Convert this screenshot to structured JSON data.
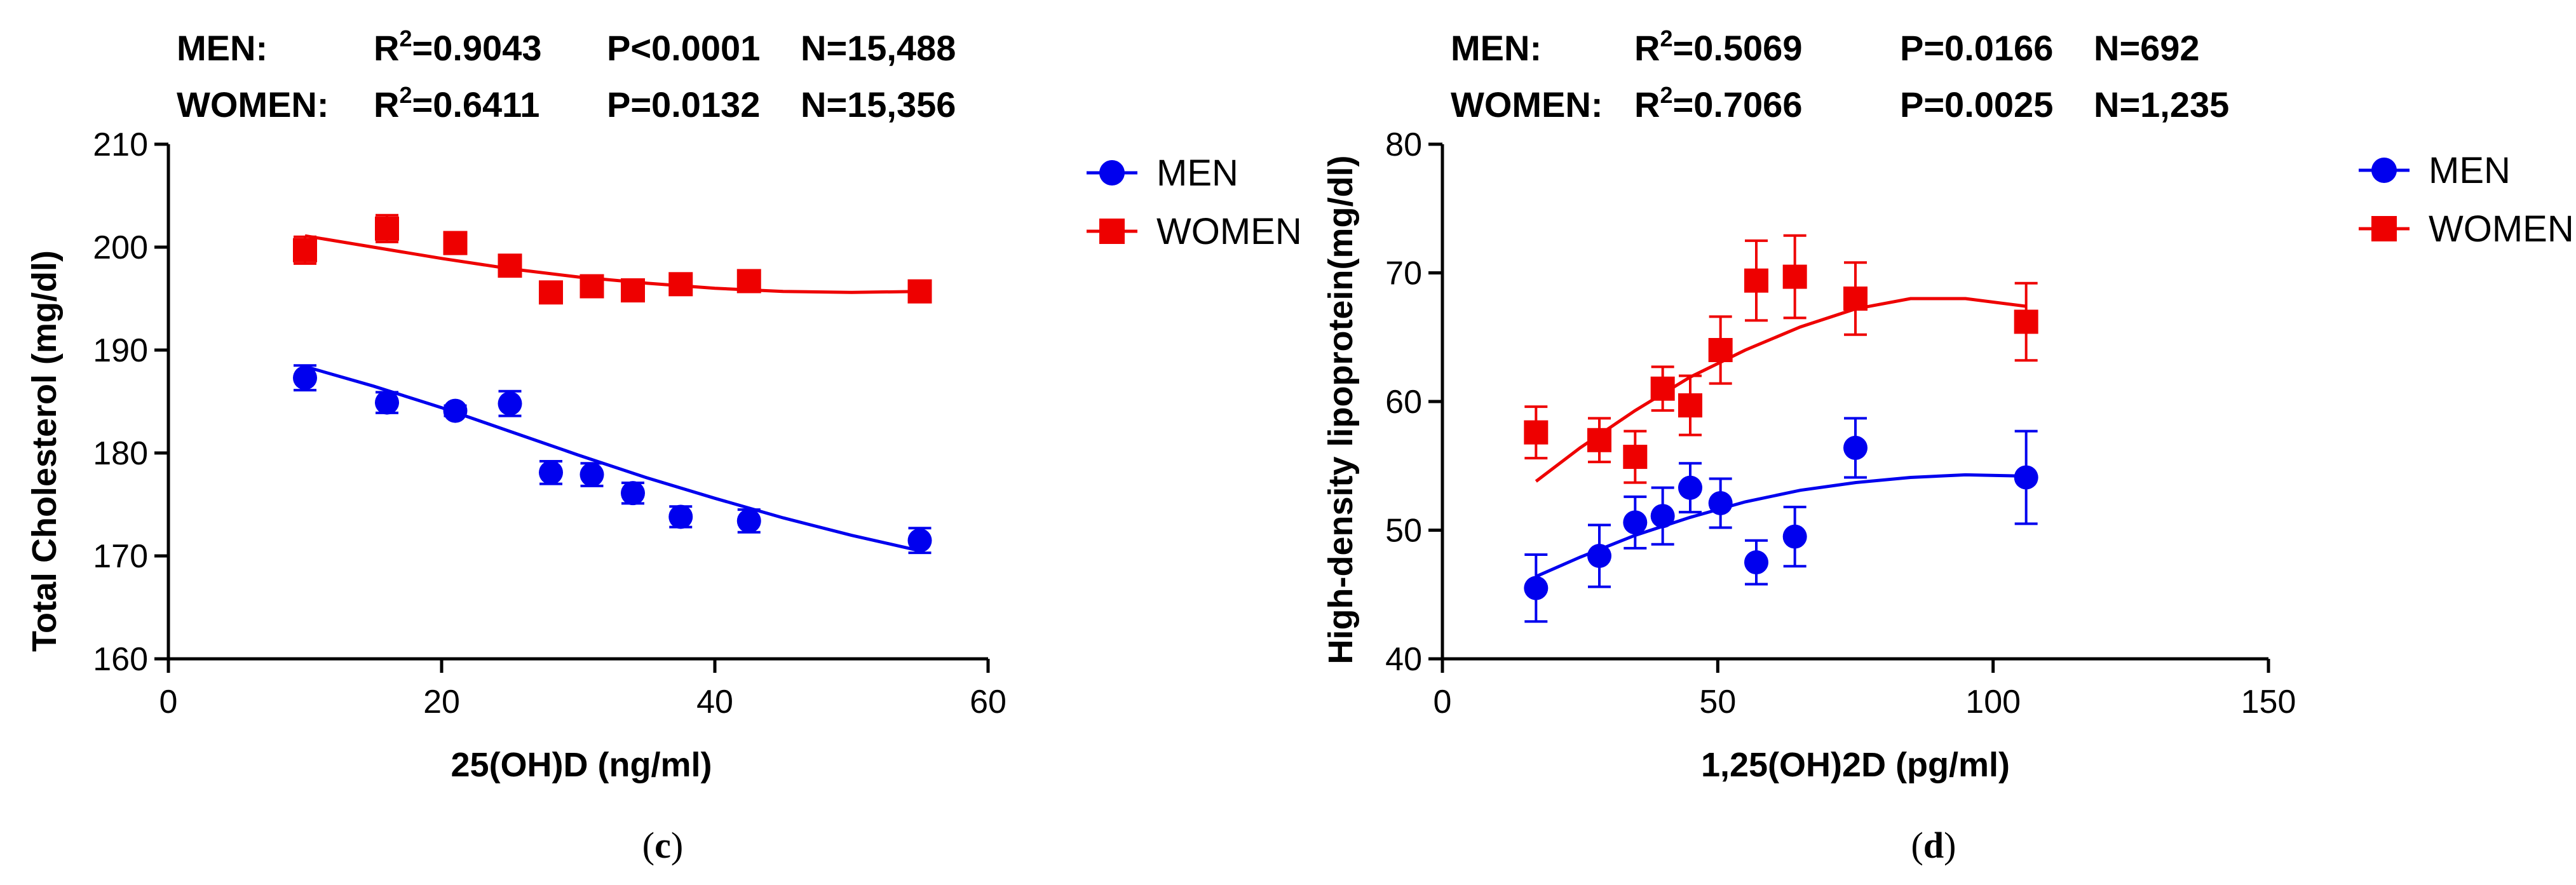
{
  "chart_data": [
    {
      "type": "scatter",
      "panel_label": "c",
      "stats": [
        {
          "group": "MEN:",
          "r2": "=0.9043",
          "p": "P<0.0001",
          "n": "N=15,488"
        },
        {
          "group": "WOMEN:",
          "r2": "=0.6411",
          "p": "P=0.0132",
          "n": "N=15,356"
        }
      ],
      "xlabel": "25(OH)D (ng/ml)",
      "ylabel": "Total Cholesterol (mg/dl)",
      "xlim": [
        0,
        60
      ],
      "ylim": [
        160,
        210
      ],
      "xticks": [
        0,
        20,
        40,
        60
      ],
      "yticks": [
        160,
        170,
        180,
        190,
        200,
        210
      ],
      "legend_position": "right",
      "series": [
        {
          "name": "MEN",
          "color": "#0000ee",
          "marker": "circle",
          "x": [
            10,
            16,
            21,
            25,
            28,
            31,
            34,
            37.5,
            42.5,
            55
          ],
          "y": [
            187.3,
            184.9,
            184.1,
            184.8,
            178.1,
            177.9,
            176.1,
            173.8,
            173.4,
            171.5
          ],
          "err": [
            1.2,
            1.0,
            0.5,
            1.2,
            1.1,
            1.1,
            1.0,
            1.0,
            1.1,
            1.2
          ],
          "fit": [
            [
              10,
              188.4
            ],
            [
              15,
              186.5
            ],
            [
              20,
              184.4
            ],
            [
              25,
              182.1
            ],
            [
              30,
              179.8
            ],
            [
              35,
              177.6
            ],
            [
              40,
              175.6
            ],
            [
              45,
              173.7
            ],
            [
              50,
              172.0
            ],
            [
              55,
              170.5
            ]
          ]
        },
        {
          "name": "WOMEN",
          "color": "#ee0000",
          "marker": "square",
          "x": [
            10,
            16,
            21,
            25,
            28,
            31,
            34,
            37.5,
            42.5,
            55
          ],
          "y": [
            199.7,
            201.8,
            200.4,
            198.2,
            195.6,
            196.2,
            195.8,
            196.4,
            196.7,
            195.7
          ],
          "err": [
            1.3,
            1.3,
            1.0,
            1.0,
            0.4,
            0.4,
            0.4,
            0.4,
            0.4,
            0.4
          ],
          "fit": [
            [
              10,
              201.1
            ],
            [
              15,
              200.0
            ],
            [
              20,
              198.9
            ],
            [
              25,
              197.9
            ],
            [
              30,
              197.1
            ],
            [
              35,
              196.5
            ],
            [
              40,
              196.0
            ],
            [
              45,
              195.7
            ],
            [
              50,
              195.6
            ],
            [
              55,
              195.7
            ]
          ]
        }
      ]
    },
    {
      "type": "scatter",
      "panel_label": "d",
      "stats": [
        {
          "group": "MEN:",
          "r2": "=0.5069",
          "p": "P=0.0166",
          "n": "N=692"
        },
        {
          "group": "WOMEN:",
          "r2": "=0.7066",
          "p": "P=0.0025",
          "n": "N=1,235"
        }
      ],
      "xlabel": "1,25(OH)2D (pg/ml)",
      "ylabel": "High-density lipoprotein(mg/dl)",
      "xlim": [
        0,
        150
      ],
      "ylim": [
        40,
        80
      ],
      "xticks": [
        0,
        50,
        100,
        150
      ],
      "yticks": [
        40,
        50,
        60,
        70,
        80
      ],
      "legend_position": "right",
      "series": [
        {
          "name": "MEN",
          "color": "#0000ee",
          "marker": "circle",
          "x": [
            17,
            28.5,
            35,
            40,
            45,
            50.5,
            57,
            64,
            75,
            106
          ],
          "y": [
            45.5,
            48.0,
            50.6,
            51.1,
            53.3,
            52.1,
            47.5,
            49.5,
            56.4,
            54.1
          ],
          "err": [
            2.6,
            2.4,
            2.0,
            2.2,
            1.9,
            1.9,
            1.7,
            2.3,
            2.3,
            3.6
          ],
          "fit": [
            [
              17,
              46.4
            ],
            [
              25,
              47.9
            ],
            [
              35,
              49.6
            ],
            [
              45,
              51.0
            ],
            [
              55,
              52.2
            ],
            [
              65,
              53.1
            ],
            [
              75,
              53.7
            ],
            [
              85,
              54.1
            ],
            [
              95,
              54.3
            ],
            [
              106,
              54.2
            ]
          ]
        },
        {
          "name": "WOMEN",
          "color": "#ee0000",
          "marker": "square",
          "x": [
            17,
            28.5,
            35,
            40,
            45,
            50.5,
            57,
            64,
            75,
            106
          ],
          "y": [
            57.6,
            57.0,
            55.7,
            61.0,
            59.7,
            64.0,
            69.4,
            69.7,
            68.0,
            66.2
          ],
          "err": [
            2.0,
            1.7,
            2.0,
            1.7,
            2.3,
            2.6,
            3.1,
            3.2,
            2.8,
            3.0
          ],
          "fit": [
            [
              17,
              53.8
            ],
            [
              25,
              56.4
            ],
            [
              35,
              59.3
            ],
            [
              45,
              61.9
            ],
            [
              55,
              64.0
            ],
            [
              65,
              65.8
            ],
            [
              75,
              67.2
            ],
            [
              85,
              68.0
            ],
            [
              95,
              68.0
            ],
            [
              106,
              67.4
            ]
          ]
        }
      ]
    }
  ]
}
